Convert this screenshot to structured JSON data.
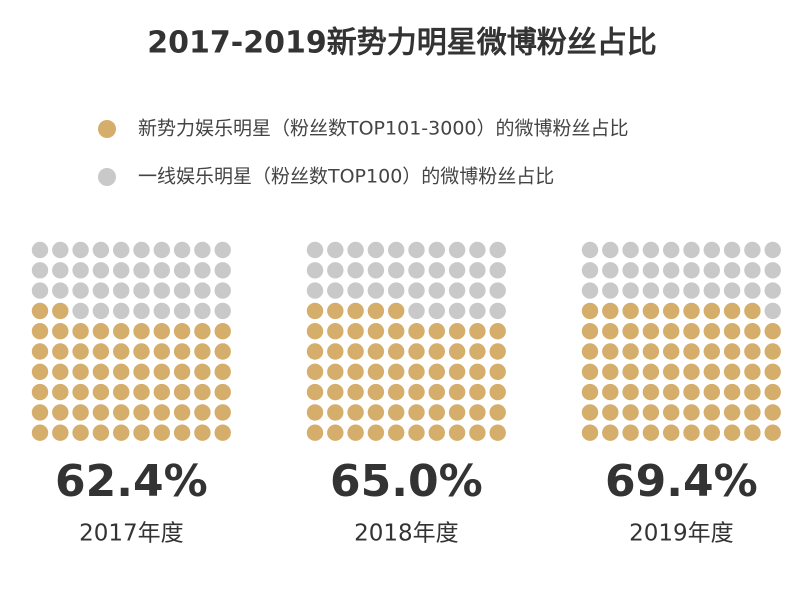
{
  "chart_data": {
    "type": "waffle",
    "title": "2017-2019新势力明星微博粉丝占比",
    "series": [
      {
        "name": "新势力娱乐明星（粉丝数TOP101-3000）的微博粉丝占比",
        "color": "#d5ae6c"
      },
      {
        "name": "一线娱乐明星（粉丝数TOP100）的微博粉丝占比",
        "color": "#c9c9c9"
      }
    ],
    "categories": [
      "2017年度",
      "2018年度",
      "2019年度"
    ],
    "values": [
      62.4,
      65.0,
      69.4
    ],
    "value_labels": [
      "62.4%",
      "65.0%",
      "69.4%"
    ]
  }
}
